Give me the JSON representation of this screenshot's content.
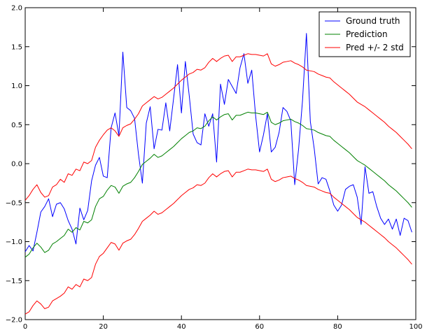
{
  "chart_data": {
    "type": "line",
    "title": "",
    "xlabel": "",
    "ylabel": "",
    "xlim": [
      0,
      100
    ],
    "ylim": [
      -2.0,
      2.0
    ],
    "x_ticks": [
      0,
      20,
      40,
      60,
      80,
      100
    ],
    "y_ticks": [
      -2.0,
      -1.5,
      -1.0,
      -0.5,
      0.0,
      0.5,
      1.0,
      1.5,
      2.0
    ],
    "x_tick_labels": [
      "0",
      "20",
      "40",
      "60",
      "80",
      "100"
    ],
    "y_tick_labels": [
      "−2.0",
      "−1.5",
      "−1.0",
      "−0.5",
      "0.0",
      "0.5",
      "1.0",
      "1.5",
      "2.0"
    ],
    "grid": false,
    "legend_position": "top-right",
    "series": [
      {
        "name": "Ground truth",
        "color": "#0000ff",
        "x": [
          0,
          1,
          2,
          3,
          4,
          5,
          6,
          7,
          8,
          9,
          10,
          11,
          12,
          13,
          14,
          15,
          16,
          17,
          18,
          19,
          20,
          21,
          22,
          23,
          24,
          25,
          26,
          27,
          28,
          29,
          30,
          31,
          32,
          33,
          34,
          35,
          36,
          37,
          38,
          39,
          40,
          41,
          42,
          43,
          44,
          45,
          46,
          47,
          48,
          49,
          50,
          51,
          52,
          53,
          54,
          55,
          56,
          57,
          58,
          59,
          60,
          61,
          62,
          63,
          64,
          65,
          66,
          67,
          68,
          69,
          70,
          71,
          72,
          73,
          74,
          75,
          76,
          77,
          78,
          79,
          80,
          81,
          82,
          83,
          84,
          85,
          86,
          87,
          88,
          89,
          90,
          91,
          92,
          93,
          94,
          95,
          96,
          97,
          98,
          99
        ],
        "values": [
          -1.13,
          -1.05,
          -1.12,
          -0.88,
          -0.62,
          -0.55,
          -0.45,
          -0.68,
          -0.52,
          -0.5,
          -0.58,
          -0.73,
          -0.84,
          -1.03,
          -0.57,
          -0.72,
          -0.6,
          -0.22,
          -0.02,
          0.08,
          -0.16,
          -0.18,
          0.46,
          0.65,
          0.36,
          1.43,
          0.72,
          0.68,
          0.58,
          0.12,
          -0.25,
          0.52,
          0.73,
          0.19,
          0.44,
          0.43,
          0.78,
          0.42,
          0.84,
          1.27,
          0.65,
          1.31,
          0.87,
          0.38,
          0.27,
          0.24,
          0.64,
          0.48,
          0.64,
          0.02,
          1.02,
          0.76,
          1.08,
          0.99,
          0.9,
          1.23,
          1.41,
          1.03,
          1.2,
          0.61,
          0.15,
          0.37,
          0.64,
          0.15,
          0.21,
          0.4,
          0.72,
          0.67,
          0.55,
          -0.27,
          0.19,
          0.81,
          1.67,
          0.54,
          0.19,
          -0.26,
          -0.18,
          -0.2,
          -0.35,
          -0.53,
          -0.61,
          -0.53,
          -0.33,
          -0.29,
          -0.27,
          -0.43,
          -0.78,
          -0.04,
          -0.38,
          -0.36,
          -0.55,
          -0.7,
          -0.78,
          -0.71,
          -0.84,
          -0.71,
          -0.92,
          -0.7,
          -0.73,
          -0.88
        ]
      },
      {
        "name": "Prediction",
        "color": "#008000",
        "x": [
          0,
          1,
          2,
          3,
          4,
          5,
          6,
          7,
          8,
          9,
          10,
          11,
          12,
          13,
          14,
          15,
          16,
          17,
          18,
          19,
          20,
          21,
          22,
          23,
          24,
          25,
          26,
          27,
          28,
          29,
          30,
          31,
          32,
          33,
          34,
          35,
          36,
          37,
          38,
          39,
          40,
          41,
          42,
          43,
          44,
          45,
          46,
          47,
          48,
          49,
          50,
          51,
          52,
          53,
          54,
          55,
          56,
          57,
          58,
          59,
          60,
          61,
          62,
          63,
          64,
          65,
          66,
          67,
          68,
          69,
          70,
          71,
          72,
          73,
          74,
          75,
          76,
          77,
          78,
          79,
          80,
          81,
          82,
          83,
          84,
          85,
          86,
          87,
          88,
          89,
          90,
          91,
          92,
          93,
          94,
          95,
          96,
          97,
          98,
          99
        ],
        "values": [
          -1.2,
          -1.16,
          -1.08,
          -1.02,
          -1.07,
          -1.14,
          -1.11,
          -1.03,
          -1.0,
          -0.96,
          -0.92,
          -0.84,
          -0.88,
          -0.82,
          -0.85,
          -0.74,
          -0.76,
          -0.72,
          -0.55,
          -0.45,
          -0.42,
          -0.34,
          -0.28,
          -0.3,
          -0.38,
          -0.29,
          -0.26,
          -0.24,
          -0.18,
          -0.1,
          -0.01,
          0.03,
          0.07,
          0.12,
          0.08,
          0.1,
          0.14,
          0.18,
          0.22,
          0.27,
          0.32,
          0.36,
          0.4,
          0.42,
          0.46,
          0.45,
          0.48,
          0.55,
          0.6,
          0.56,
          0.6,
          0.63,
          0.64,
          0.56,
          0.62,
          0.62,
          0.64,
          0.66,
          0.65,
          0.65,
          0.64,
          0.63,
          0.66,
          0.53,
          0.5,
          0.52,
          0.55,
          0.56,
          0.57,
          0.54,
          0.52,
          0.49,
          0.45,
          0.44,
          0.43,
          0.4,
          0.38,
          0.36,
          0.35,
          0.3,
          0.26,
          0.22,
          0.18,
          0.14,
          0.09,
          0.04,
          0.01,
          -0.02,
          -0.06,
          -0.1,
          -0.14,
          -0.18,
          -0.22,
          -0.27,
          -0.31,
          -0.35,
          -0.4,
          -0.45,
          -0.5,
          -0.56
        ]
      },
      {
        "name": "Pred +/- 2 std",
        "color": "#ff0000",
        "x": [
          0,
          1,
          2,
          3,
          4,
          5,
          6,
          7,
          8,
          9,
          10,
          11,
          12,
          13,
          14,
          15,
          16,
          17,
          18,
          19,
          20,
          21,
          22,
          23,
          24,
          25,
          26,
          27,
          28,
          29,
          30,
          31,
          32,
          33,
          34,
          35,
          36,
          37,
          38,
          39,
          40,
          41,
          42,
          43,
          44,
          45,
          46,
          47,
          48,
          49,
          50,
          51,
          52,
          53,
          54,
          55,
          56,
          57,
          58,
          59,
          60,
          61,
          62,
          63,
          64,
          65,
          66,
          67,
          68,
          69,
          70,
          71,
          72,
          73,
          74,
          75,
          76,
          77,
          78,
          79,
          80,
          81,
          82,
          83,
          84,
          85,
          86,
          87,
          88,
          89,
          90,
          91,
          92,
          93,
          94,
          95,
          96,
          97,
          98,
          99
        ],
        "values": [
          -0.47,
          -0.41,
          -0.33,
          -0.27,
          -0.37,
          -0.43,
          -0.41,
          -0.3,
          -0.27,
          -0.2,
          -0.24,
          -0.13,
          -0.15,
          -0.07,
          -0.09,
          0.02,
          0.0,
          0.04,
          0.21,
          0.3,
          0.37,
          0.43,
          0.46,
          0.42,
          0.35,
          0.46,
          0.49,
          0.51,
          0.57,
          0.64,
          0.74,
          0.78,
          0.82,
          0.86,
          0.83,
          0.85,
          0.89,
          0.93,
          0.97,
          1.02,
          1.07,
          1.11,
          1.15,
          1.17,
          1.21,
          1.2,
          1.23,
          1.3,
          1.35,
          1.31,
          1.35,
          1.38,
          1.39,
          1.31,
          1.37,
          1.37,
          1.39,
          1.41,
          1.4,
          1.4,
          1.39,
          1.38,
          1.41,
          1.28,
          1.25,
          1.27,
          1.3,
          1.31,
          1.32,
          1.29,
          1.27,
          1.24,
          1.2,
          1.19,
          1.18,
          1.15,
          1.13,
          1.11,
          1.1,
          1.05,
          1.01,
          0.97,
          0.93,
          0.89,
          0.84,
          0.79,
          0.76,
          0.73,
          0.69,
          0.65,
          0.61,
          0.57,
          0.53,
          0.48,
          0.44,
          0.4,
          0.35,
          0.3,
          0.25,
          0.19
        ]
      },
      {
        "name": "",
        "color": "#ff0000",
        "x": [
          0,
          1,
          2,
          3,
          4,
          5,
          6,
          7,
          8,
          9,
          10,
          11,
          12,
          13,
          14,
          15,
          16,
          17,
          18,
          19,
          20,
          21,
          22,
          23,
          24,
          25,
          26,
          27,
          28,
          29,
          30,
          31,
          32,
          33,
          34,
          35,
          36,
          37,
          38,
          39,
          40,
          41,
          42,
          43,
          44,
          45,
          46,
          47,
          48,
          49,
          50,
          51,
          52,
          53,
          54,
          55,
          56,
          57,
          58,
          59,
          60,
          61,
          62,
          63,
          64,
          65,
          66,
          67,
          68,
          69,
          70,
          71,
          72,
          73,
          74,
          75,
          76,
          77,
          78,
          79,
          80,
          81,
          82,
          83,
          84,
          85,
          86,
          87,
          88,
          89,
          90,
          91,
          92,
          93,
          94,
          95,
          96,
          97,
          98,
          99
        ],
        "values": [
          -1.93,
          -1.9,
          -1.82,
          -1.76,
          -1.8,
          -1.86,
          -1.84,
          -1.76,
          -1.73,
          -1.7,
          -1.66,
          -1.58,
          -1.61,
          -1.55,
          -1.58,
          -1.48,
          -1.5,
          -1.46,
          -1.29,
          -1.19,
          -1.15,
          -1.08,
          -1.01,
          -1.03,
          -1.11,
          -1.02,
          -0.99,
          -0.97,
          -0.91,
          -0.83,
          -0.74,
          -0.7,
          -0.66,
          -0.61,
          -0.65,
          -0.63,
          -0.59,
          -0.55,
          -0.51,
          -0.46,
          -0.41,
          -0.37,
          -0.33,
          -0.31,
          -0.27,
          -0.28,
          -0.25,
          -0.18,
          -0.13,
          -0.17,
          -0.13,
          -0.1,
          -0.09,
          -0.17,
          -0.11,
          -0.11,
          -0.09,
          -0.07,
          -0.08,
          -0.08,
          -0.09,
          -0.1,
          -0.07,
          -0.2,
          -0.23,
          -0.21,
          -0.18,
          -0.17,
          -0.16,
          -0.19,
          -0.21,
          -0.24,
          -0.28,
          -0.29,
          -0.3,
          -0.33,
          -0.35,
          -0.37,
          -0.38,
          -0.43,
          -0.47,
          -0.51,
          -0.55,
          -0.59,
          -0.64,
          -0.69,
          -0.72,
          -0.75,
          -0.79,
          -0.83,
          -0.87,
          -0.91,
          -0.95,
          -1.0,
          -1.04,
          -1.08,
          -1.13,
          -1.18,
          -1.23,
          -1.29
        ]
      }
    ],
    "legend": [
      {
        "label": "Ground truth",
        "color": "#0000ff"
      },
      {
        "label": "Prediction",
        "color": "#008000"
      },
      {
        "label": "Pred +/- 2 std",
        "color": "#ff0000"
      }
    ]
  }
}
